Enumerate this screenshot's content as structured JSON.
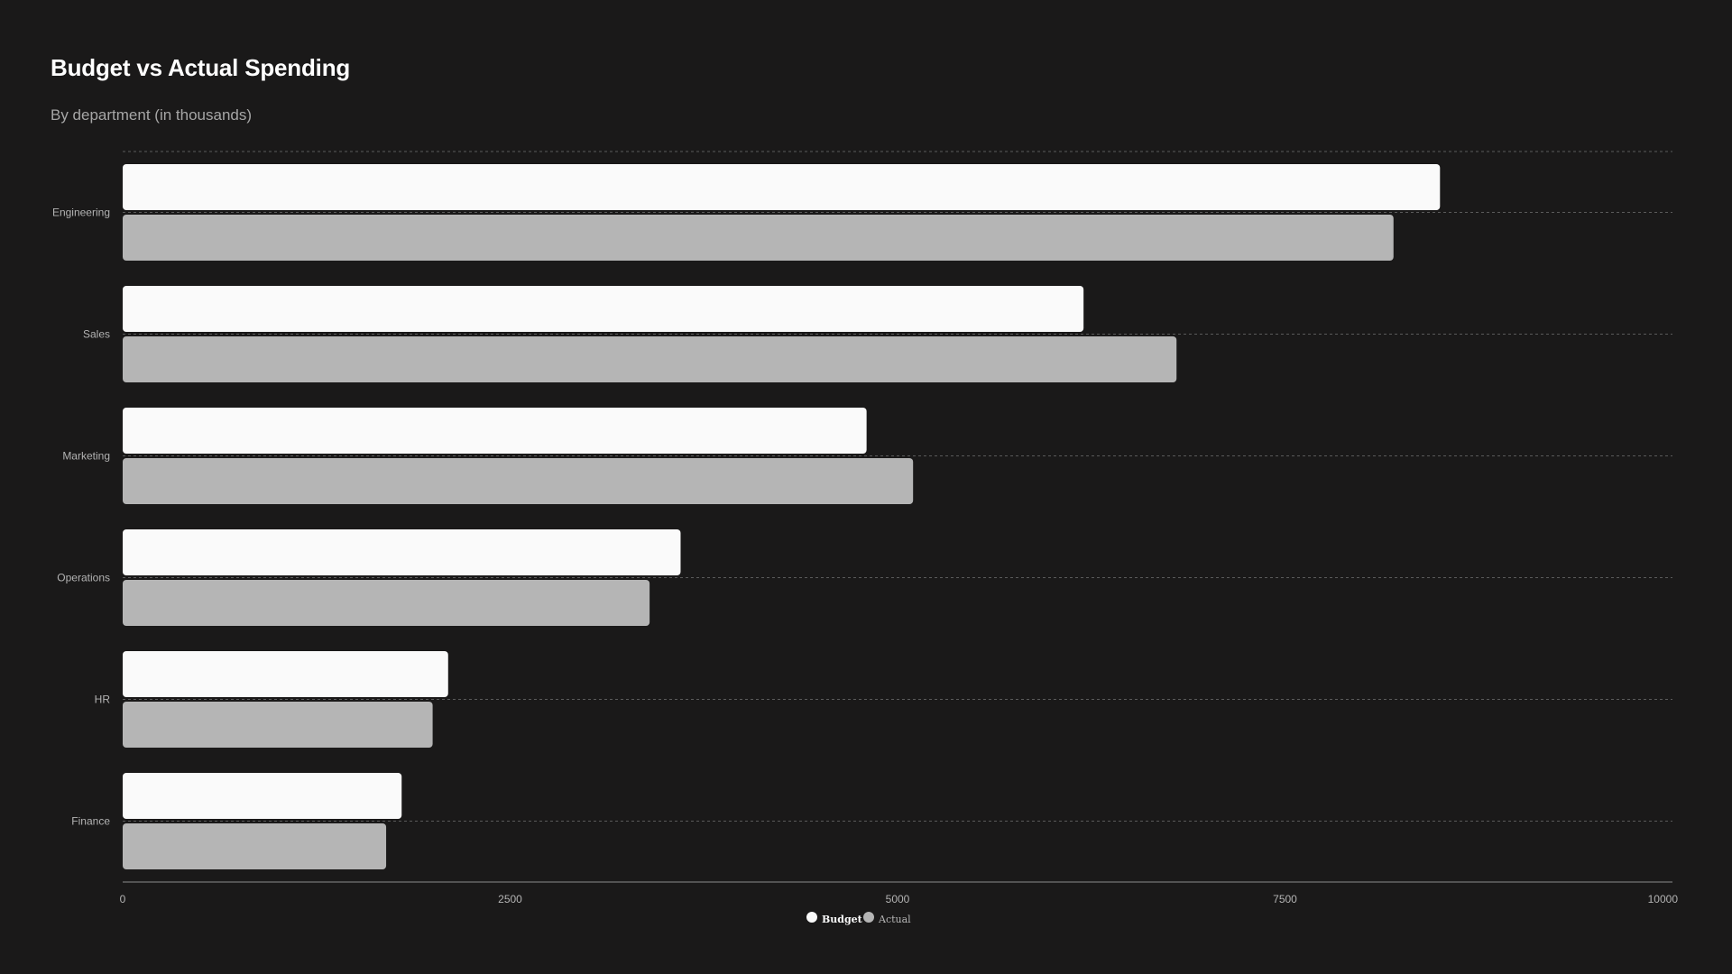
{
  "chart_data": {
    "type": "bar",
    "orientation": "horizontal",
    "title": "Budget vs Actual Spending",
    "subtitle": "By department (in thousands)",
    "categories": [
      "Engineering",
      "Sales",
      "Marketing",
      "Operations",
      "HR",
      "Finance"
    ],
    "series": [
      {
        "name": "Budget",
        "values": [
          8500,
          6200,
          4800,
          3600,
          2100,
          1800
        ],
        "color": "#fafafa"
      },
      {
        "name": "Actual",
        "values": [
          8200,
          6800,
          5100,
          3400,
          2000,
          1700
        ],
        "color": "#b5b5b5"
      }
    ],
    "xlim": [
      0,
      10000
    ],
    "xticks": [
      "0",
      "2500",
      "5000",
      "7500",
      "10000"
    ],
    "grid": true,
    "legend": "bottom-center"
  },
  "colors": {
    "background": "#1a1919",
    "grid": "#5a5a5a",
    "axis": "#8a8a8a"
  }
}
